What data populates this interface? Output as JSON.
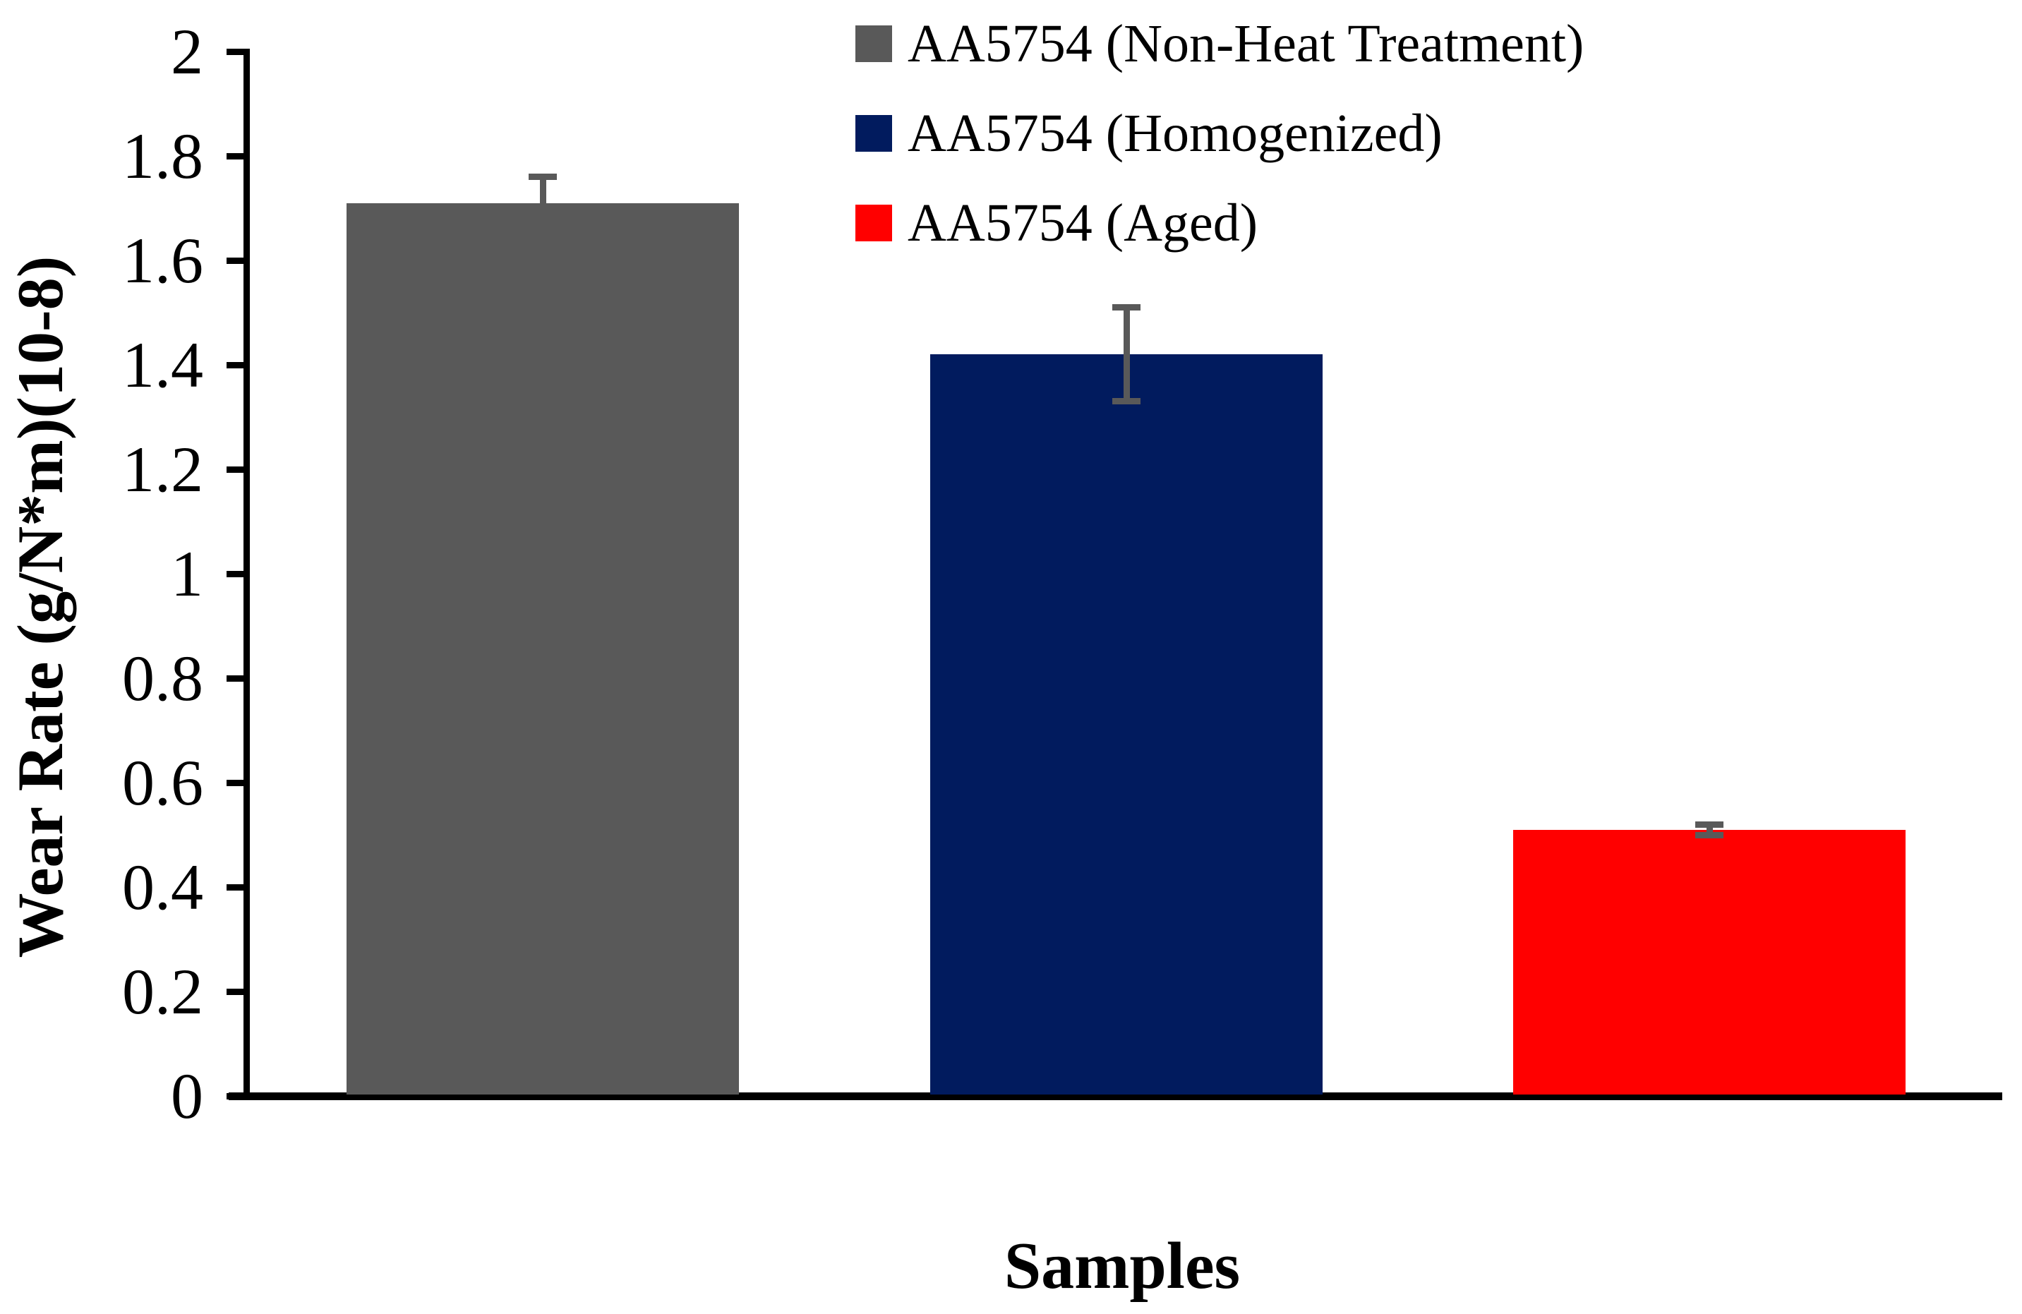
{
  "chart_data": {
    "type": "bar",
    "title": "",
    "xlabel": "Samples",
    "ylabel": "Wear Rate (g/N*m)(10-8)",
    "categories": [
      "AA5754 (Non-Heat Treatment)",
      "AA5754 (Homogenized)",
      "AA5754 (Aged)"
    ],
    "values": [
      1.71,
      1.42,
      0.51
    ],
    "errors": [
      0.05,
      0.09,
      0.01
    ],
    "bar_colors": [
      "#595959",
      "#011B5E",
      "#FF0000"
    ],
    "error_color": "#595959",
    "axis_color": "#000000",
    "ylim": [
      0,
      2
    ],
    "ytick_step": 0.2,
    "ytick_labels": [
      "0",
      "0.2",
      "0.4",
      "0.6",
      "0.8",
      "1",
      "1.2",
      "1.4",
      "1.6",
      "1.8",
      "2"
    ],
    "grid": "off",
    "legend_position": "top-center",
    "legend": [
      {
        "label": "AA5754 (Non-Heat Treatment)",
        "color": "#595959"
      },
      {
        "label": "AA5754 (Homogenized)",
        "color": "#011B5E"
      },
      {
        "label": "AA5754 (Aged)",
        "color": "#FF0000"
      }
    ]
  }
}
